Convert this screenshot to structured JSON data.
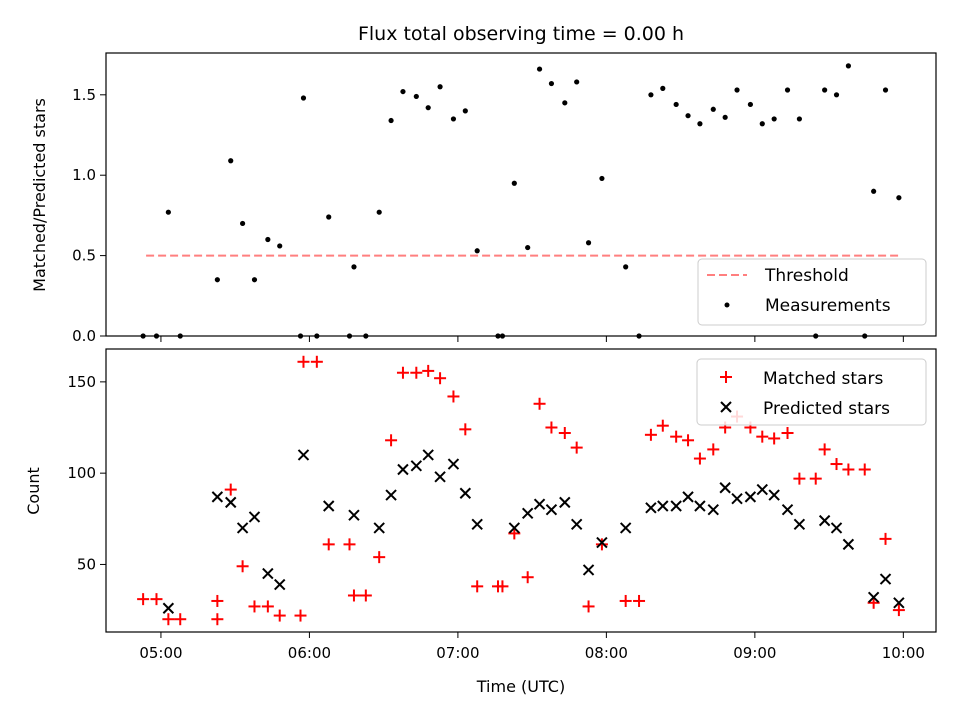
{
  "chart_data": [
    {
      "type": "scatter",
      "title": "Flux total observing time = 0.00 h",
      "xlabel": "",
      "ylabel": "Matched/Predicted stars",
      "xlim": [
        4.63,
        10.22
      ],
      "ylim": [
        0.0,
        1.76
      ],
      "yticks": [
        0.0,
        0.5,
        1.0,
        1.5
      ],
      "ytick_labels": [
        "0.0",
        "0.5",
        "1.0",
        "1.5"
      ],
      "threshold": {
        "name": "Threshold",
        "value": 0.5,
        "x_range": [
          4.9,
          9.98
        ],
        "color": "#ff7f7f"
      },
      "series": [
        {
          "name": "Measurements",
          "color": "#000000",
          "x": [
            4.88,
            4.97,
            5.05,
            5.13,
            5.38,
            5.47,
            5.55,
            5.63,
            5.72,
            5.8,
            5.94,
            5.96,
            6.05,
            6.13,
            6.27,
            6.3,
            6.38,
            6.47,
            6.55,
            6.63,
            6.72,
            6.8,
            6.88,
            6.97,
            7.05,
            7.13,
            7.27,
            7.3,
            7.38,
            7.47,
            7.55,
            7.63,
            7.72,
            7.8,
            7.88,
            7.97,
            8.13,
            8.22,
            8.3,
            8.38,
            8.47,
            8.55,
            8.63,
            8.72,
            8.8,
            8.88,
            8.97,
            9.05,
            9.13,
            9.22,
            9.3,
            9.41,
            9.47,
            9.55,
            9.63,
            9.74,
            9.8,
            9.88,
            9.97
          ],
          "y": [
            0.0,
            0.0,
            0.77,
            0.0,
            0.35,
            1.09,
            0.7,
            0.35,
            0.6,
            0.56,
            0.0,
            1.48,
            0.0,
            0.74,
            0.0,
            0.43,
            0.0,
            0.77,
            1.34,
            1.52,
            1.49,
            1.42,
            1.55,
            1.35,
            1.4,
            0.53,
            0.0,
            0.0,
            0.95,
            0.55,
            1.66,
            1.57,
            1.45,
            1.58,
            0.58,
            0.98,
            0.43,
            0.0,
            1.5,
            1.54,
            1.44,
            1.37,
            1.32,
            1.41,
            1.36,
            1.53,
            1.44,
            1.32,
            1.35,
            1.53,
            1.35,
            0.0,
            1.53,
            1.5,
            1.68,
            0.0,
            0.9,
            1.53,
            0.86
          ]
        }
      ],
      "legend": {
        "position": "bottom-right",
        "entries": [
          "Threshold",
          "Measurements"
        ]
      }
    },
    {
      "type": "scatter",
      "title": "",
      "xlabel": "Time (UTC)",
      "ylabel": "Count",
      "xlim": [
        4.63,
        10.22
      ],
      "ylim": [
        13,
        168
      ],
      "yticks": [
        50,
        100,
        150
      ],
      "ytick_labels": [
        "50",
        "100",
        "150"
      ],
      "xticks": [
        5,
        6,
        7,
        8,
        9,
        10
      ],
      "xtick_labels": [
        "05:00",
        "06:00",
        "07:00",
        "08:00",
        "09:00",
        "10:00"
      ],
      "series": [
        {
          "name": "Matched stars",
          "marker": "+",
          "color": "#ff0000",
          "x": [
            4.88,
            4.97,
            5.05,
            5.13,
            5.38,
            5.38,
            5.47,
            5.55,
            5.63,
            5.72,
            5.8,
            5.94,
            5.96,
            6.05,
            6.13,
            6.27,
            6.3,
            6.38,
            6.47,
            6.55,
            6.63,
            6.72,
            6.8,
            6.88,
            6.97,
            7.05,
            7.13,
            7.27,
            7.3,
            7.38,
            7.47,
            7.55,
            7.63,
            7.72,
            7.8,
            7.88,
            7.97,
            8.13,
            8.22,
            8.3,
            8.38,
            8.47,
            8.55,
            8.63,
            8.72,
            8.8,
            8.88,
            8.97,
            9.05,
            9.13,
            9.22,
            9.3,
            9.41,
            9.47,
            9.55,
            9.63,
            9.74,
            9.8,
            9.88,
            9.97
          ],
          "y": [
            31,
            31,
            20,
            20,
            20,
            30,
            91,
            49,
            27,
            27,
            22,
            22,
            161,
            161,
            61,
            61,
            33,
            33,
            54,
            118,
            155,
            155,
            156,
            152,
            142,
            124,
            38,
            38,
            38,
            67,
            43,
            138,
            125,
            122,
            114,
            27,
            61,
            30,
            30,
            121,
            126,
            120,
            118,
            108,
            113,
            125,
            131,
            125,
            120,
            119,
            122,
            97,
            97,
            113,
            105,
            102,
            102,
            29,
            64,
            25
          ]
        },
        {
          "name": "Predicted stars",
          "marker": "x",
          "color": "#000000",
          "x": [
            5.05,
            5.38,
            5.47,
            5.55,
            5.63,
            5.72,
            5.8,
            5.96,
            6.13,
            6.3,
            6.47,
            6.55,
            6.63,
            6.72,
            6.8,
            6.88,
            6.97,
            7.05,
            7.13,
            7.38,
            7.47,
            7.55,
            7.63,
            7.72,
            7.8,
            7.88,
            7.97,
            8.13,
            8.3,
            8.38,
            8.47,
            8.55,
            8.63,
            8.72,
            8.8,
            8.88,
            8.97,
            9.05,
            9.13,
            9.22,
            9.3,
            9.47,
            9.55,
            9.63,
            9.8,
            9.88,
            9.97
          ],
          "y": [
            26,
            87,
            84,
            70,
            76,
            45,
            39,
            110,
            82,
            77,
            70,
            88,
            102,
            104,
            110,
            98,
            105,
            89,
            72,
            70,
            78,
            83,
            80,
            84,
            72,
            47,
            62,
            70,
            81,
            82,
            82,
            87,
            82,
            80,
            92,
            86,
            87,
            91,
            88,
            80,
            72,
            74,
            70,
            61,
            32,
            42,
            29
          ]
        }
      ],
      "legend": {
        "position": "top-right",
        "entries": [
          "Matched stars",
          "Predicted stars"
        ]
      }
    }
  ]
}
